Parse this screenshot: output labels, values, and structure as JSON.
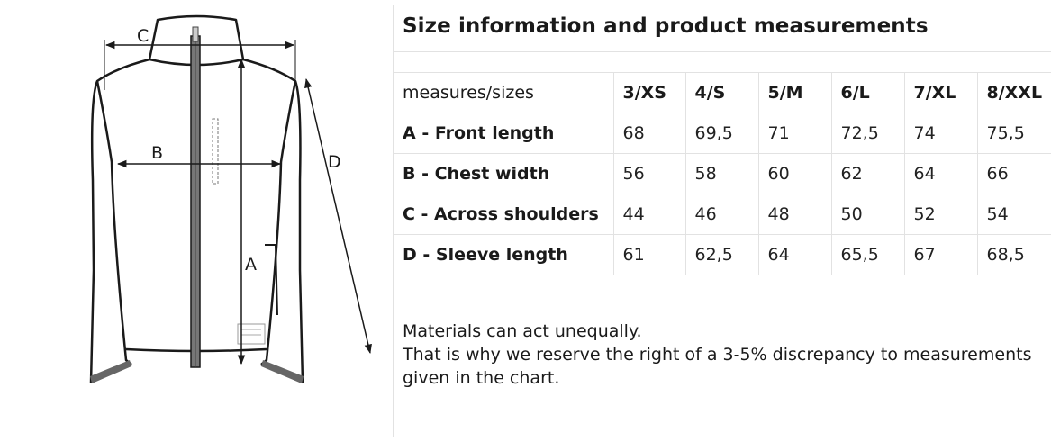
{
  "diagram": {
    "labels": {
      "a": "A",
      "b": "B",
      "c": "C",
      "d": "D"
    }
  },
  "panel": {
    "title": "Size information and product measurements",
    "table": {
      "corner_label": "measures/sizes",
      "sizes": [
        "3/XS",
        "4/S",
        "5/M",
        "6/L",
        "7/XL",
        "8/XXL"
      ],
      "rows": [
        {
          "label": "A - Front length",
          "values": [
            "68",
            "69,5",
            "71",
            "72,5",
            "74",
            "75,5"
          ]
        },
        {
          "label": "B - Chest width",
          "values": [
            "56",
            "58",
            "60",
            "62",
            "64",
            "66"
          ]
        },
        {
          "label": "C - Across shoulders",
          "values": [
            "44",
            "46",
            "48",
            "50",
            "52",
            "54"
          ]
        },
        {
          "label": "D - Sleeve length",
          "values": [
            "61",
            "62,5",
            "64",
            "65,5",
            "67",
            "68,5"
          ]
        }
      ]
    },
    "note": [
      "Materials can act unequally.",
      "That is why we reserve the right of a 3-5% discrepancy to measurements",
      "given in the chart."
    ]
  }
}
